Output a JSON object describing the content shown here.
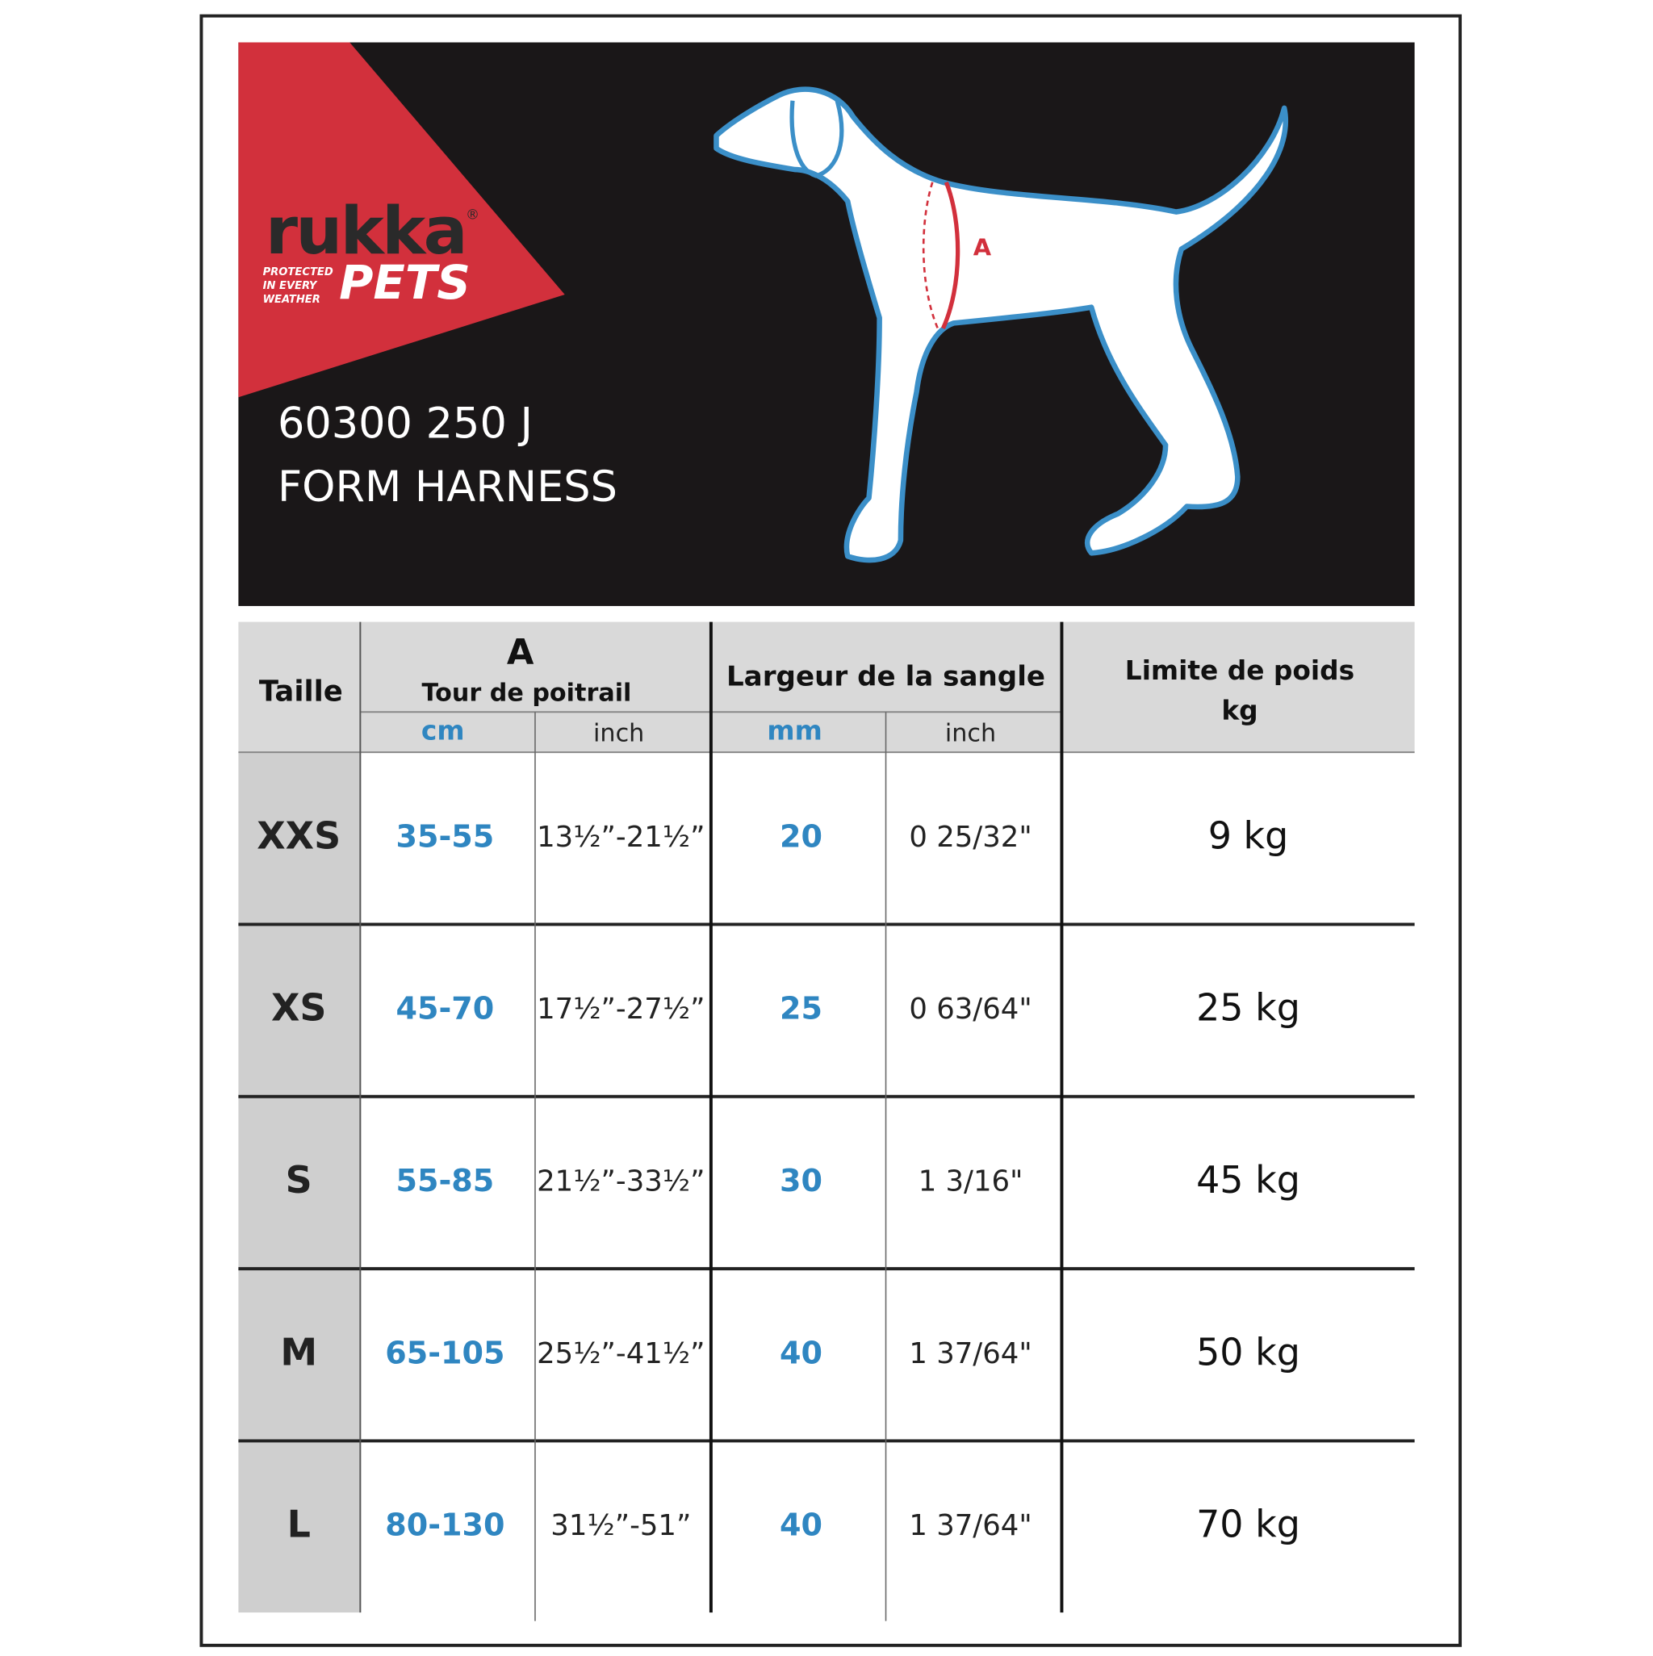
{
  "header": {
    "brand": "rukka",
    "registered": "®",
    "sub_brand": "PETS",
    "tagline": [
      "PROTECTED",
      "IN EVERY",
      "WEATHER"
    ],
    "product_code": "60300 250 J",
    "product_name": "FORM HARNESS",
    "measure_label": "A"
  },
  "table": {
    "columns": {
      "size": "Taille",
      "chest_letter": "A",
      "chest": "Tour de poitrail",
      "chest_cm": "cm",
      "chest_inch": "inch",
      "strap": "Largeur de la sangle",
      "strap_mm": "mm",
      "strap_inch": "inch",
      "weight": "Limite de poids",
      "weight_unit": "kg"
    },
    "rows": [
      [
        "XXS",
        "35-55",
        "13½”-21½”",
        "20",
        "0 25/32\"",
        "9 kg"
      ],
      [
        "XS",
        "45-70",
        "17½”-27½”",
        "25",
        "0 63/64\"",
        "25 kg"
      ],
      [
        "S",
        "55-85",
        "21½”-33½”",
        "30",
        "1 3/16\"",
        "45 kg"
      ],
      [
        "M",
        "65-105",
        "25½”-41½”",
        "40",
        "1 37/64\"",
        "50 kg"
      ],
      [
        "L",
        "80-130",
        "31½”-51”",
        "40",
        "1 37/64\"",
        "70 kg"
      ]
    ]
  }
}
